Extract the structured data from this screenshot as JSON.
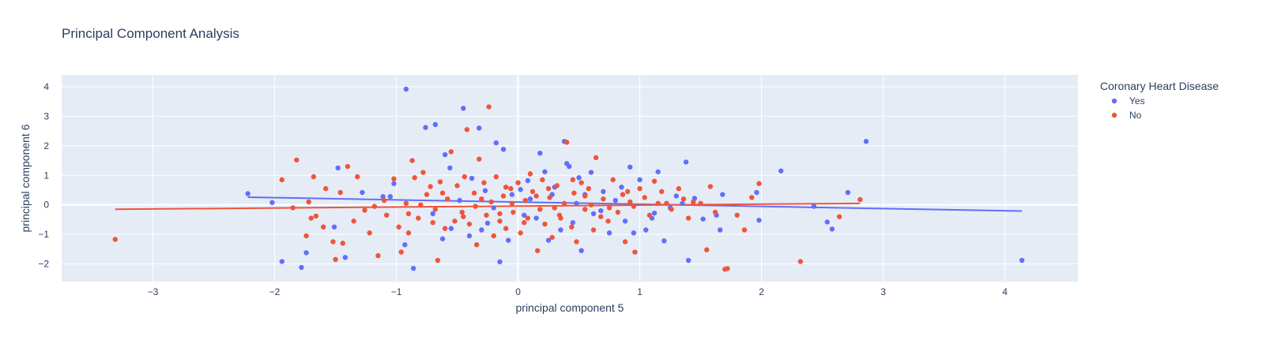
{
  "chart_data": {
    "type": "scatter",
    "title": "Principal Component Analysis",
    "xlabel": "principal component 5",
    "ylabel": "principal component 6",
    "xlim": [
      -3.75,
      4.6
    ],
    "ylim": [
      -2.6,
      4.4
    ],
    "x_ticks": [
      -3,
      -2,
      -1,
      0,
      1,
      2,
      3,
      4
    ],
    "y_ticks": [
      -2,
      -1,
      0,
      1,
      2,
      3,
      4
    ],
    "grid": true,
    "legend": {
      "title": "Coronary Heart Disease",
      "placement": "top-right"
    },
    "series": [
      {
        "name": "Yes",
        "color": "#636efa",
        "trendline": [
          [
            -2.22,
            0.26
          ],
          [
            4.14,
            -0.21
          ]
        ],
        "points": [
          [
            -2.22,
            0.38
          ],
          [
            -2.02,
            0.08
          ],
          [
            -1.94,
            -1.92
          ],
          [
            -1.78,
            -2.12
          ],
          [
            -1.74,
            -1.62
          ],
          [
            -1.48,
            1.25
          ],
          [
            -1.42,
            -1.78
          ],
          [
            -1.51,
            -0.75
          ],
          [
            -1.28,
            0.42
          ],
          [
            -1.11,
            0.28
          ],
          [
            -1.05,
            0.28
          ],
          [
            -1.02,
            0.72
          ],
          [
            -0.92,
            3.92
          ],
          [
            -0.93,
            -1.35
          ],
          [
            -0.86,
            -2.15
          ],
          [
            -0.76,
            2.62
          ],
          [
            -0.68,
            2.72
          ],
          [
            -0.6,
            1.7
          ],
          [
            -0.56,
            1.25
          ],
          [
            -0.55,
            -0.8
          ],
          [
            -0.45,
            3.27
          ],
          [
            -0.4,
            -1.05
          ],
          [
            -0.32,
            2.6
          ],
          [
            -0.3,
            -0.85
          ],
          [
            -0.27,
            0.48
          ],
          [
            -0.18,
            2.1
          ],
          [
            -0.15,
            -1.93
          ],
          [
            -0.12,
            1.88
          ],
          [
            -0.08,
            -1.2
          ],
          [
            -0.05,
            0.35
          ],
          [
            0.02,
            0.52
          ],
          [
            0.05,
            -0.35
          ],
          [
            0.1,
            0.2
          ],
          [
            0.18,
            1.75
          ],
          [
            0.22,
            1.12
          ],
          [
            0.25,
            -1.2
          ],
          [
            0.3,
            0.6
          ],
          [
            0.35,
            -0.85
          ],
          [
            0.38,
            2.15
          ],
          [
            0.4,
            1.4
          ],
          [
            0.42,
            1.3
          ],
          [
            0.45,
            -0.6
          ],
          [
            0.5,
            0.92
          ],
          [
            0.52,
            -1.55
          ],
          [
            0.55,
            0.35
          ],
          [
            0.6,
            1.1
          ],
          [
            0.62,
            -0.3
          ],
          [
            0.7,
            0.45
          ],
          [
            0.75,
            -0.95
          ],
          [
            0.8,
            0.15
          ],
          [
            0.85,
            0.6
          ],
          [
            0.88,
            -0.55
          ],
          [
            0.92,
            1.28
          ],
          [
            0.95,
            -0.95
          ],
          [
            1.0,
            0.85
          ],
          [
            1.05,
            -0.85
          ],
          [
            1.1,
            -0.45
          ],
          [
            1.12,
            -0.28
          ],
          [
            1.15,
            1.12
          ],
          [
            1.2,
            -1.22
          ],
          [
            1.3,
            0.3
          ],
          [
            1.35,
            0.05
          ],
          [
            1.38,
            1.45
          ],
          [
            1.4,
            -1.88
          ],
          [
            1.45,
            0.22
          ],
          [
            1.52,
            -0.48
          ],
          [
            1.63,
            -0.35
          ],
          [
            1.66,
            -0.85
          ],
          [
            1.68,
            0.35
          ],
          [
            1.96,
            0.42
          ],
          [
            1.98,
            -0.52
          ],
          [
            2.16,
            1.15
          ],
          [
            2.43,
            -0.05
          ],
          [
            2.54,
            -0.58
          ],
          [
            2.58,
            -0.82
          ],
          [
            2.71,
            0.42
          ],
          [
            2.86,
            2.15
          ],
          [
            4.14,
            -1.88
          ],
          [
            -0.7,
            -0.3
          ],
          [
            -0.2,
            -0.1
          ],
          [
            0.15,
            -0.45
          ],
          [
            0.68,
            -0.2
          ],
          [
            -0.38,
            0.9
          ],
          [
            0.28,
            0.35
          ],
          [
            -0.62,
            -1.15
          ],
          [
            0.48,
            0.05
          ],
          [
            1.25,
            -0.1
          ],
          [
            -0.48,
            0.15
          ],
          [
            0.08,
            0.82
          ],
          [
            -0.25,
            -0.62
          ]
        ]
      },
      {
        "name": "No",
        "color": "#ef553b",
        "trendline": [
          [
            -3.31,
            -0.15
          ],
          [
            2.81,
            0.05
          ]
        ],
        "points": [
          [
            -3.31,
            -1.17
          ],
          [
            -1.94,
            0.85
          ],
          [
            -1.85,
            -0.1
          ],
          [
            -1.82,
            1.52
          ],
          [
            -1.74,
            -1.05
          ],
          [
            -1.72,
            0.1
          ],
          [
            -1.7,
            -0.45
          ],
          [
            -1.68,
            0.95
          ],
          [
            -1.66,
            -0.38
          ],
          [
            -1.6,
            -0.75
          ],
          [
            -1.58,
            0.55
          ],
          [
            -1.52,
            -1.25
          ],
          [
            -1.5,
            -1.85
          ],
          [
            -1.46,
            0.42
          ],
          [
            -1.44,
            -1.3
          ],
          [
            -1.4,
            1.3
          ],
          [
            -1.35,
            -0.55
          ],
          [
            -1.32,
            0.95
          ],
          [
            -1.26,
            -0.18
          ],
          [
            -1.22,
            -0.95
          ],
          [
            -1.18,
            -0.05
          ],
          [
            -1.15,
            -1.72
          ],
          [
            -1.08,
            -0.35
          ],
          [
            -1.02,
            0.88
          ],
          [
            -0.98,
            -0.75
          ],
          [
            -0.96,
            -1.6
          ],
          [
            -0.92,
            0.05
          ],
          [
            -0.9,
            -0.95
          ],
          [
            -0.87,
            1.5
          ],
          [
            -0.85,
            0.92
          ],
          [
            -0.82,
            -0.45
          ],
          [
            -0.78,
            1.1
          ],
          [
            -0.75,
            0.35
          ],
          [
            -0.72,
            0.62
          ],
          [
            -0.68,
            -0.15
          ],
          [
            -0.66,
            -1.88
          ],
          [
            -0.64,
            0.78
          ],
          [
            -0.6,
            -0.8
          ],
          [
            -0.58,
            0.2
          ],
          [
            -0.55,
            1.8
          ],
          [
            -0.52,
            -0.55
          ],
          [
            -0.5,
            0.65
          ],
          [
            -0.46,
            -0.25
          ],
          [
            -0.44,
            0.95
          ],
          [
            -0.42,
            2.55
          ],
          [
            -0.4,
            -0.65
          ],
          [
            -0.36,
            0.4
          ],
          [
            -0.34,
            -1.35
          ],
          [
            -0.32,
            1.55
          ],
          [
            -0.28,
            0.75
          ],
          [
            -0.26,
            -0.35
          ],
          [
            -0.24,
            3.32
          ],
          [
            -0.22,
            0.1
          ],
          [
            -0.2,
            -1.05
          ],
          [
            -0.18,
            0.95
          ],
          [
            -0.15,
            -0.55
          ],
          [
            -0.12,
            0.3
          ],
          [
            -0.1,
            -0.8
          ],
          [
            -0.06,
            0.55
          ],
          [
            -0.04,
            -0.25
          ],
          [
            0.0,
            0.75
          ],
          [
            0.02,
            -0.95
          ],
          [
            0.06,
            0.15
          ],
          [
            0.08,
            -0.45
          ],
          [
            0.1,
            1.05
          ],
          [
            0.12,
            0.45
          ],
          [
            0.16,
            -1.55
          ],
          [
            0.18,
            -0.15
          ],
          [
            0.2,
            0.85
          ],
          [
            0.22,
            -0.65
          ],
          [
            0.26,
            0.25
          ],
          [
            0.28,
            -1.1
          ],
          [
            0.32,
            0.65
          ],
          [
            0.34,
            -0.35
          ],
          [
            0.38,
            0.05
          ],
          [
            0.4,
            2.12
          ],
          [
            0.44,
            -0.75
          ],
          [
            0.46,
            0.4
          ],
          [
            0.48,
            -1.25
          ],
          [
            0.52,
            0.75
          ],
          [
            0.55,
            -0.15
          ],
          [
            0.58,
            0.55
          ],
          [
            0.62,
            -0.85
          ],
          [
            0.64,
            1.6
          ],
          [
            0.68,
            -0.4
          ],
          [
            0.7,
            0.2
          ],
          [
            0.74,
            -0.55
          ],
          [
            0.78,
            0.85
          ],
          [
            0.82,
            -0.25
          ],
          [
            0.86,
            0.35
          ],
          [
            0.88,
            -1.25
          ],
          [
            0.92,
            0.1
          ],
          [
            0.96,
            -1.6
          ],
          [
            1.0,
            0.55
          ],
          [
            1.04,
            0.25
          ],
          [
            1.08,
            -0.35
          ],
          [
            1.12,
            0.8
          ],
          [
            1.18,
            0.45
          ],
          [
            1.22,
            0.05
          ],
          [
            1.26,
            -0.15
          ],
          [
            1.32,
            0.55
          ],
          [
            1.36,
            0.2
          ],
          [
            1.44,
            0.1
          ],
          [
            1.5,
            0.05
          ],
          [
            1.55,
            -1.52
          ],
          [
            1.58,
            0.62
          ],
          [
            1.62,
            -0.25
          ],
          [
            1.7,
            -2.18
          ],
          [
            1.72,
            -2.16
          ],
          [
            1.8,
            -0.35
          ],
          [
            1.86,
            -0.85
          ],
          [
            1.92,
            0.25
          ],
          [
            1.98,
            0.72
          ],
          [
            2.32,
            -1.92
          ],
          [
            2.64,
            -0.4
          ],
          [
            2.81,
            0.18
          ],
          [
            -0.8,
            0.0
          ],
          [
            -0.35,
            -0.05
          ],
          [
            0.15,
            0.3
          ],
          [
            0.6,
            0.0
          ],
          [
            -0.05,
            0.05
          ],
          [
            0.3,
            -0.1
          ],
          [
            -0.62,
            0.4
          ],
          [
            0.9,
            0.45
          ],
          [
            -1.1,
            0.15
          ],
          [
            0.45,
            0.85
          ],
          [
            -0.15,
            -0.3
          ],
          [
            0.75,
            -0.1
          ],
          [
            -0.45,
            -0.4
          ],
          [
            0.05,
            -0.6
          ],
          [
            1.15,
            0.05
          ],
          [
            -0.9,
            -0.3
          ],
          [
            0.25,
            0.55
          ],
          [
            -0.3,
            0.2
          ],
          [
            0.55,
            0.3
          ],
          [
            -0.7,
            -0.6
          ],
          [
            0.95,
            -0.05
          ],
          [
            -0.1,
            0.6
          ],
          [
            0.35,
            -0.45
          ],
          [
            1.4,
            -0.45
          ]
        ]
      }
    ]
  }
}
